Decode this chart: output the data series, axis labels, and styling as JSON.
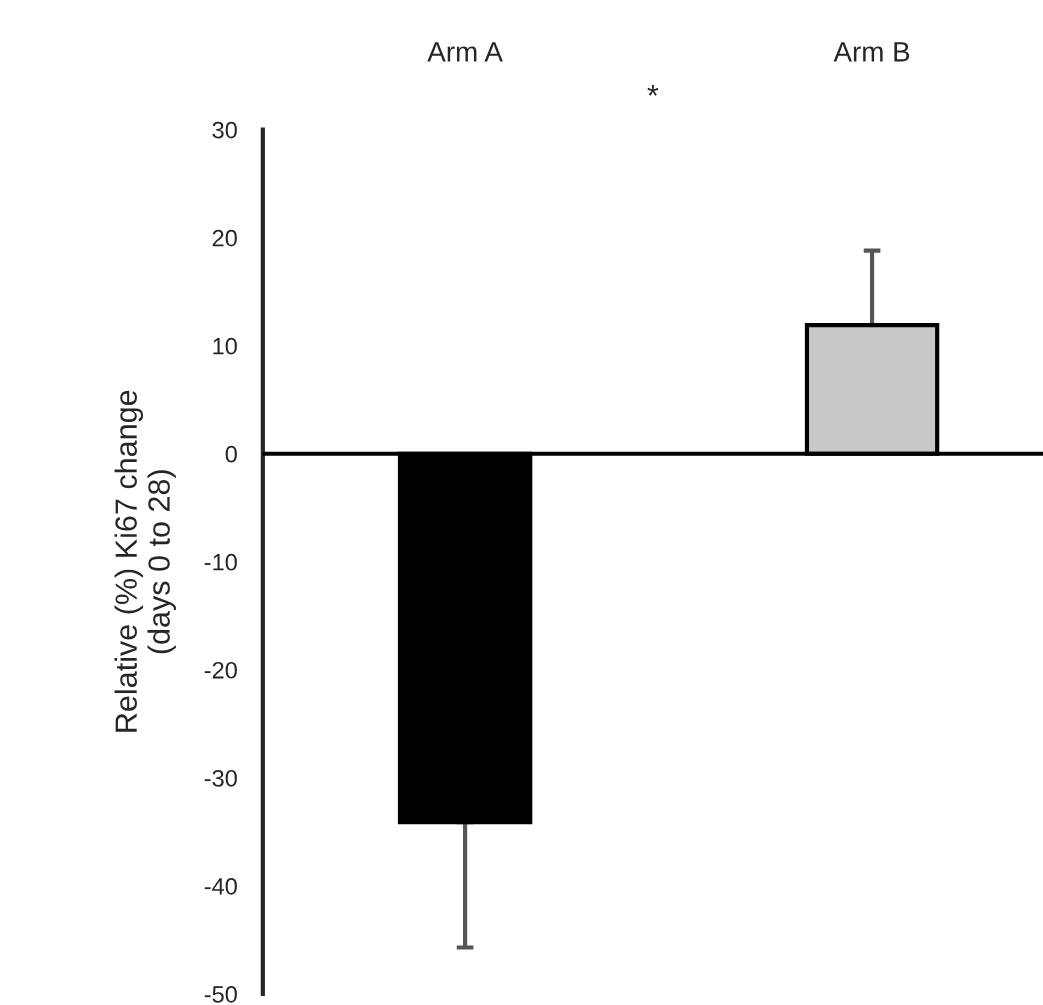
{
  "chart_data": {
    "type": "bar",
    "categories": [
      "Arm A",
      "Arm B"
    ],
    "values": [
      -34.1,
      11.9
    ],
    "colors": [
      "#000000",
      "#c8c8c8"
    ],
    "errors": [
      [
        -45.7,
        -34.1
      ],
      [
        11.9,
        18.8
      ]
    ],
    "ylabel": "Relative (%) Ki67 change\n(days 0 to 28)",
    "ylim": [
      -50,
      30
    ],
    "yticks": [
      -50,
      -40,
      -30,
      -20,
      -10,
      0,
      10,
      20,
      30
    ],
    "annotations": [
      "*"
    ],
    "ref_lines": [
      {
        "axis": "y",
        "value": 0,
        "color": "#000000"
      }
    ],
    "grid": false,
    "legend": false
  }
}
